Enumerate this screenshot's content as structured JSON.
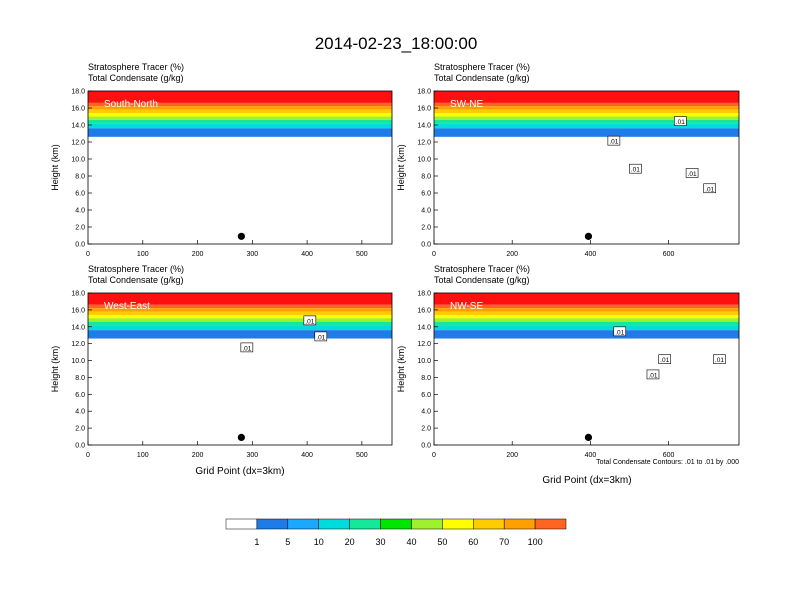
{
  "title": "2014-02-23_18:00:00",
  "field_label": "Stratosphere Tracer   (%)",
  "contour_label": "Total Condensate   (g/kg)",
  "contour_info": "Total Condensate Contours: .01 to .01 by .000",
  "xlabel": "Grid Point (dx=3km)",
  "ylabel": "Height (km)",
  "colorbar": {
    "levels": [
      "1",
      "5",
      "10",
      "20",
      "30",
      "40",
      "50",
      "60",
      "70",
      "100"
    ],
    "colors": [
      "#ffffff",
      "#1e7be8",
      "#1aa9ff",
      "#00dcdc",
      "#16e89a",
      "#00e600",
      "#9ff02f",
      "#ffff00",
      "#ffcc00",
      "#ffa000",
      "#ff6420",
      "#ff1010"
    ]
  },
  "chart_data": [
    {
      "type": "contour",
      "panel": "South-North",
      "xlim": [
        0,
        555
      ],
      "ylim": [
        0,
        18
      ],
      "xticks": [
        "0",
        "100",
        "200",
        "300",
        "400",
        "500"
      ],
      "yticks": [
        "0.0",
        "2.0",
        "4.0",
        "6.0",
        "8.0",
        "10.0",
        "12.0",
        "14.0",
        "16.0",
        "18.0"
      ],
      "contour_labels": [],
      "marker_x": 280
    },
    {
      "type": "contour",
      "panel": "SW-NE",
      "xlim": [
        0,
        780
      ],
      "ylim": [
        0,
        18
      ],
      "xticks": [
        "0",
        "200",
        "400",
        "600"
      ],
      "yticks": [
        "0.0",
        "2.0",
        "4.0",
        "6.0",
        "8.0",
        "10.0",
        "12.0",
        "14.0",
        "16.0",
        "18.0"
      ],
      "contour_labels": [
        {
          "x": 630,
          "y": 14.4,
          "text": ".01"
        },
        {
          "x": 460,
          "y": 12.1,
          "text": ".01"
        },
        {
          "x": 515,
          "y": 8.8,
          "text": ".01"
        },
        {
          "x": 660,
          "y": 8.3,
          "text": ".01"
        },
        {
          "x": 705,
          "y": 6.5,
          "text": ".01"
        }
      ],
      "marker_x": 395
    },
    {
      "type": "contour",
      "panel": "West-East",
      "xlim": [
        0,
        555
      ],
      "ylim": [
        0,
        18
      ],
      "xticks": [
        "0",
        "100",
        "200",
        "300",
        "400",
        "500"
      ],
      "yticks": [
        "0.0",
        "2.0",
        "4.0",
        "6.0",
        "8.0",
        "10.0",
        "12.0",
        "14.0",
        "16.0",
        "18.0"
      ],
      "contour_labels": [
        {
          "x": 405,
          "y": 14.7,
          "text": ".01"
        },
        {
          "x": 425,
          "y": 12.8,
          "text": ".01"
        },
        {
          "x": 290,
          "y": 11.5,
          "text": ".01"
        }
      ],
      "marker_x": 280
    },
    {
      "type": "contour",
      "panel": "NW-SE",
      "xlim": [
        0,
        780
      ],
      "ylim": [
        0,
        18
      ],
      "xticks": [
        "0",
        "200",
        "400",
        "600"
      ],
      "yticks": [
        "0.0",
        "2.0",
        "4.0",
        "6.0",
        "8.0",
        "10.0",
        "12.0",
        "14.0",
        "16.0",
        "18.0"
      ],
      "contour_labels": [
        {
          "x": 475,
          "y": 13.4,
          "text": ".01"
        },
        {
          "x": 590,
          "y": 10.1,
          "text": ".01"
        },
        {
          "x": 560,
          "y": 8.3,
          "text": ".01"
        },
        {
          "x": 730,
          "y": 10.1,
          "text": ".01"
        }
      ],
      "marker_x": 395
    }
  ]
}
